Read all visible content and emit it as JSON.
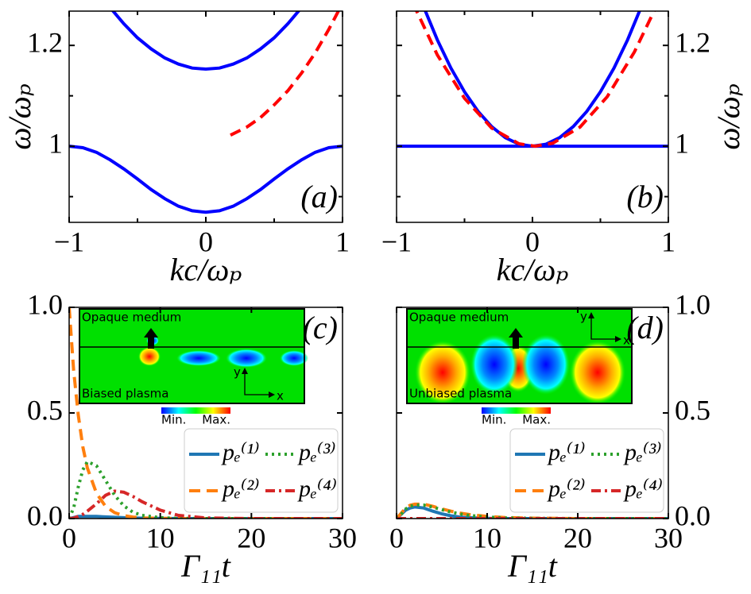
{
  "chart_data": [
    {
      "type": "line",
      "panel_label": "(a)",
      "label_corner": "lower right",
      "yaxis_side": "left",
      "xlabel": "kc/ωₚ",
      "ylabel": "ω/ωₚ",
      "xlim": [
        -1,
        1
      ],
      "ylim": [
        0.849,
        1.268
      ],
      "xticks": [
        {
          "value": -1,
          "label": "−1"
        },
        0,
        1
      ],
      "xticks_minor": [
        -0.5,
        0.5
      ],
      "yticks": [
        1,
        1.2
      ],
      "yticks_minor": [
        0.9,
        1.1
      ],
      "series": [
        {
          "color": "#0000ff",
          "dash": "solid",
          "x": [
            -1,
            -0.9,
            -0.8,
            -0.7,
            -0.6,
            -0.5,
            -0.4,
            -0.3,
            -0.2,
            -0.1,
            0,
            0.1,
            0.2,
            0.3,
            0.4,
            0.5,
            0.6,
            0.7,
            0.8,
            0.9,
            1
          ],
          "values": [
            1,
            0.997,
            0.988,
            0.973,
            0.955,
            0.935,
            0.914,
            0.896,
            0.881,
            0.872,
            0.869,
            0.872,
            0.881,
            0.896,
            0.914,
            0.935,
            0.955,
            0.973,
            0.988,
            0.997,
            1
          ]
        },
        {
          "color": "#0000ff",
          "dash": "solid",
          "x": [
            -0.7,
            -0.6,
            -0.5,
            -0.4,
            -0.3,
            -0.2,
            -0.1,
            0,
            0.1,
            0.2,
            0.3,
            0.4,
            0.5,
            0.6,
            0.7
          ],
          "values": [
            1.275,
            1.243,
            1.215,
            1.193,
            1.175,
            1.163,
            1.155,
            1.153,
            1.155,
            1.163,
            1.175,
            1.193,
            1.215,
            1.243,
            1.275
          ]
        },
        {
          "color": "#ff0000",
          "dash": "dashed",
          "x": [
            0.18,
            0.3,
            0.4,
            0.5,
            0.6,
            0.7,
            0.8,
            0.9,
            0.97
          ],
          "values": [
            1.022,
            1.038,
            1.057,
            1.082,
            1.11,
            1.145,
            1.185,
            1.232,
            1.268
          ]
        }
      ]
    },
    {
      "type": "line",
      "panel_label": "(b)",
      "label_corner": "lower right",
      "yaxis_side": "right",
      "xlabel": "kc/ωₚ",
      "ylabel": "ω/ωₚ",
      "xlim": [
        -1,
        1
      ],
      "ylim": [
        0.849,
        1.268
      ],
      "xticks": [
        {
          "value": -1,
          "label": "−1"
        },
        0,
        1
      ],
      "xticks_minor": [
        -0.5,
        0.5
      ],
      "yticks": [
        1,
        1.2
      ],
      "yticks_minor": [
        0.9,
        1.1
      ],
      "series": [
        {
          "color": "#0000ff",
          "dash": "solid",
          "x": [
            -1,
            1
          ],
          "values": [
            1,
            1
          ]
        },
        {
          "color": "#0000ff",
          "dash": "solid",
          "x": [
            -0.82,
            -0.7,
            -0.6,
            -0.5,
            -0.4,
            -0.3,
            -0.2,
            -0.1,
            0,
            0.1,
            0.2,
            0.3,
            0.4,
            0.5,
            0.6,
            0.7,
            0.82
          ],
          "values": [
            1.289,
            1.211,
            1.155,
            1.108,
            1.069,
            1.039,
            1.017,
            1.004,
            1,
            1.004,
            1.017,
            1.039,
            1.069,
            1.108,
            1.155,
            1.211,
            1.289
          ]
        },
        {
          "color": "#ff0000",
          "dash": "dashed",
          "x": [
            -0.88,
            -0.7,
            -0.5,
            -0.3,
            -0.1,
            0.02,
            0.15,
            0.35,
            0.55,
            0.75,
            0.9
          ],
          "values": [
            1.284,
            1.181,
            1.095,
            1.036,
            1.005,
            1,
            1.006,
            1.038,
            1.098,
            1.187,
            1.271
          ]
        }
      ]
    },
    {
      "type": "line",
      "panel_label": "(c)",
      "label_corner": "upper right",
      "yaxis_side": "left",
      "xlabel": "Γ₁₁t",
      "legend": "lower right",
      "xlim": [
        0,
        30
      ],
      "ylim": [
        0,
        1
      ],
      "xticks": [
        0,
        10,
        20,
        30
      ],
      "yticks": [
        {
          "value": 0,
          "label": "0.0"
        },
        {
          "value": 0.5,
          "label": "0.5"
        },
        {
          "value": 1,
          "label": "1.0"
        }
      ],
      "inset": {
        "top_label": "Opaque medium",
        "bottom_label": "Biased plasma",
        "min_label": "Min.",
        "max_label": "Max.",
        "x_label": "x",
        "y_label": "y"
      },
      "x": [
        0,
        0.5,
        1,
        1.5,
        2,
        3,
        4,
        5,
        6,
        7,
        8,
        10,
        12,
        15,
        20,
        25,
        30
      ],
      "series": [
        {
          "name": "pₑ⁽¹⁾",
          "color": "#1f77b4",
          "dash": "solid",
          "values": [
            0,
            0.005,
            0.01,
            0.01,
            0.01,
            0.01,
            0.008,
            0.006,
            0.004,
            0.003,
            0.002,
            0.001,
            0,
            0,
            0,
            0,
            0
          ]
        },
        {
          "name": "pₑ⁽²⁾",
          "color": "#ff7f0e",
          "dash": "dashed",
          "values": [
            1,
            0.7,
            0.49,
            0.34,
            0.24,
            0.12,
            0.057,
            0.028,
            0.014,
            0.007,
            0.003,
            0.001,
            0,
            0,
            0,
            0,
            0
          ]
        },
        {
          "name": "pₑ⁽³⁾",
          "color": "#2ca02c",
          "dash": "dotted",
          "values": [
            0,
            0.05,
            0.15,
            0.23,
            0.27,
            0.25,
            0.18,
            0.11,
            0.06,
            0.03,
            0.015,
            0.004,
            0.001,
            0,
            0,
            0,
            0
          ]
        },
        {
          "name": "pₑ⁽⁴⁾",
          "color": "#d62728",
          "dash": "dashdot",
          "values": [
            0,
            0.002,
            0.01,
            0.02,
            0.035,
            0.07,
            0.11,
            0.13,
            0.125,
            0.105,
            0.08,
            0.04,
            0.015,
            0.003,
            0,
            0,
            0
          ]
        }
      ]
    },
    {
      "type": "line",
      "panel_label": "(d)",
      "label_corner": "upper right",
      "yaxis_side": "right",
      "xlabel": "Γ₁₁t",
      "legend": "lower right",
      "xlim": [
        0,
        30
      ],
      "ylim": [
        0,
        1
      ],
      "xticks": [
        0,
        10,
        20,
        30
      ],
      "yticks": [
        {
          "value": 0,
          "label": "0.0"
        },
        {
          "value": 0.5,
          "label": "0.5"
        },
        {
          "value": 1,
          "label": "1.0"
        }
      ],
      "inset": {
        "top_label": "Opaque medium",
        "bottom_label": "Unbiased plasma",
        "min_label": "Min.",
        "max_label": "Max.",
        "x_label": "x",
        "y_label": "y"
      },
      "x": [
        0,
        0.5,
        1,
        1.5,
        2,
        3,
        4,
        5,
        6,
        7,
        8,
        10,
        12,
        15,
        20,
        25,
        30
      ],
      "series": [
        {
          "name": "pₑ⁽¹⁾",
          "color": "#1f77b4",
          "dash": "solid",
          "values": [
            0,
            0.02,
            0.04,
            0.05,
            0.055,
            0.05,
            0.035,
            0.022,
            0.013,
            0.007,
            0.004,
            0.001,
            0,
            0,
            0,
            0,
            0
          ]
        },
        {
          "name": "pₑ⁽²⁾",
          "color": "#ff7f0e",
          "dash": "dashed",
          "values": [
            0,
            0.025,
            0.05,
            0.063,
            0.068,
            0.068,
            0.058,
            0.046,
            0.035,
            0.026,
            0.019,
            0.01,
            0.005,
            0.002,
            0,
            0,
            0
          ]
        },
        {
          "name": "pₑ⁽³⁾",
          "color": "#2ca02c",
          "dash": "dotted",
          "values": [
            0,
            0.02,
            0.045,
            0.058,
            0.064,
            0.064,
            0.054,
            0.042,
            0.031,
            0.022,
            0.015,
            0.007,
            0.003,
            0.001,
            0,
            0,
            0
          ]
        },
        {
          "name": "pₑ⁽⁴⁾",
          "color": "#d62728",
          "dash": "dashdot",
          "values": [
            0,
            0,
            0,
            0,
            0,
            0,
            0,
            0,
            0,
            0,
            0,
            0,
            0,
            0,
            0,
            0,
            0
          ]
        }
      ]
    }
  ]
}
